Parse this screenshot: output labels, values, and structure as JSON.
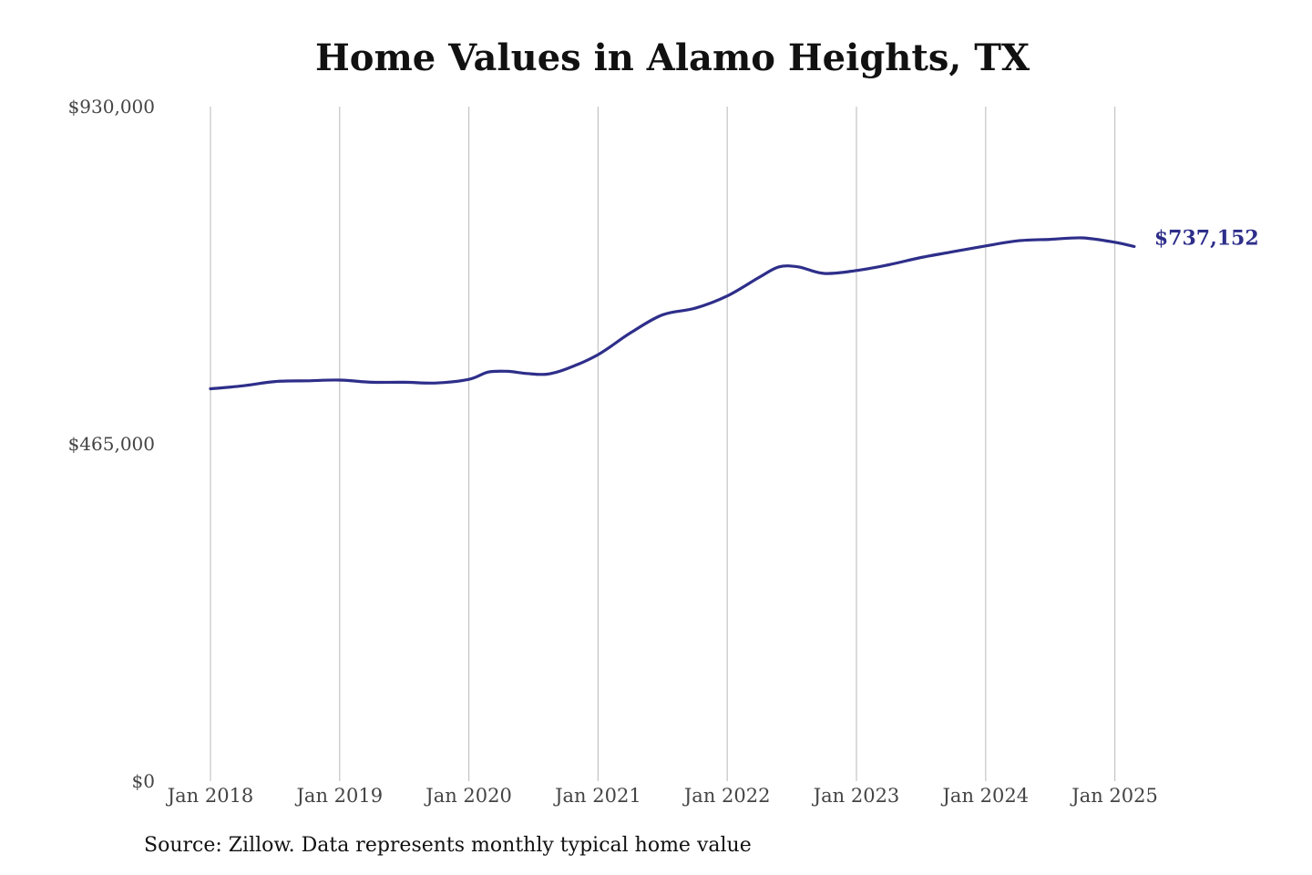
{
  "chart_data": {
    "type": "line",
    "title": "Home Values in Alamo Heights, TX",
    "source": "Source: Zillow. Data represents monthly typical home value",
    "ylim": [
      0,
      930000
    ],
    "y_ticks": [
      "$930,000",
      "$465,000",
      "$0"
    ],
    "y_tick_values": [
      930000,
      465000,
      0
    ],
    "x_ticks": [
      "Jan 2018",
      "Jan 2019",
      "Jan 2020",
      "Jan 2021",
      "Jan 2022",
      "Jan 2023",
      "Jan 2024",
      "Jan 2025"
    ],
    "x_tick_values": [
      2018,
      2019,
      2020,
      2021,
      2022,
      2023,
      2024,
      2025
    ],
    "grid": "vertical",
    "end_label": "$737,152",
    "line_color": "#2e2e8a",
    "series": [
      {
        "x": [
          2018.0,
          2018.25,
          2018.5,
          2018.75,
          2019.0,
          2019.25,
          2019.5,
          2019.75,
          2020.0,
          2020.15,
          2020.3,
          2020.45,
          2020.6,
          2020.75,
          2021.0,
          2021.25,
          2021.5,
          2021.75,
          2022.0,
          2022.25,
          2022.4,
          2022.55,
          2022.75,
          2023.0,
          2023.25,
          2023.5,
          2023.75,
          2024.0,
          2024.25,
          2024.5,
          2024.75,
          2025.0,
          2025.15
        ],
        "values": [
          541000,
          545000,
          551000,
          552000,
          553000,
          550000,
          550000,
          549000,
          554000,
          564000,
          565000,
          562000,
          561000,
          568000,
          588000,
          618000,
          643000,
          652000,
          669000,
          695000,
          709000,
          709000,
          700000,
          704000,
          712000,
          722000,
          730000,
          738000,
          745000,
          747000,
          749000,
          743000,
          737152
        ]
      }
    ]
  }
}
